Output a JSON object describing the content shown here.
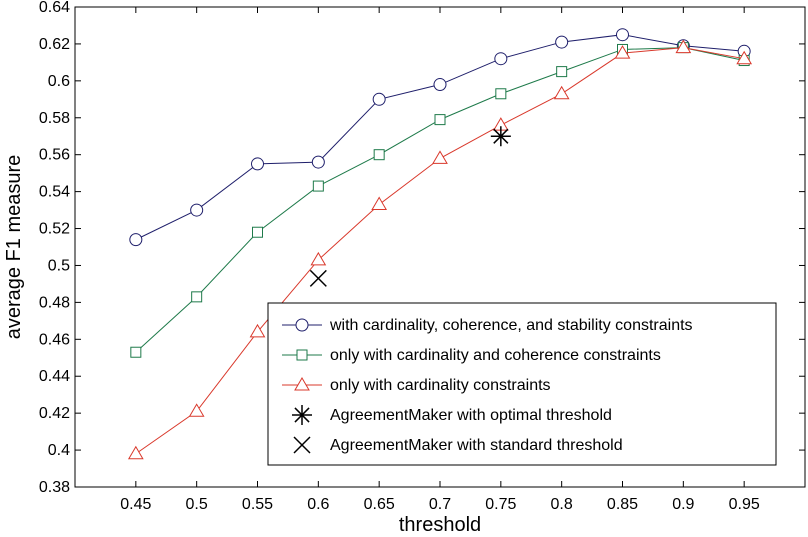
{
  "chart_data": {
    "type": "line",
    "title": "",
    "xlabel": "threshold",
    "ylabel": "average F1 measure",
    "xlim": [
      0.4,
      1.0
    ],
    "ylim": [
      0.38,
      0.64
    ],
    "xticks": [
      "0.45",
      "0.5",
      "0.55",
      "0.6",
      "0.65",
      "0.7",
      "0.75",
      "0.8",
      "0.85",
      "0.9",
      "0.95"
    ],
    "yticks": [
      "0.38",
      "0.4",
      "0.42",
      "0.44",
      "0.46",
      "0.48",
      "0.5",
      "0.52",
      "0.54",
      "0.56",
      "0.58",
      "0.6",
      "0.62",
      "0.64"
    ],
    "grid": false,
    "legend_position": "bottom-right",
    "x": [
      0.45,
      0.5,
      0.55,
      0.6,
      0.65,
      0.7,
      0.75,
      0.8,
      0.85,
      0.9,
      0.95
    ],
    "series": [
      {
        "name": "with cardinality, coherence, and stability constraints",
        "color": "#1f1f6b",
        "marker": "circle",
        "values": [
          0.514,
          0.53,
          0.555,
          0.556,
          0.59,
          0.598,
          0.612,
          0.621,
          0.625,
          0.619,
          0.616
        ]
      },
      {
        "name": "only with cardinality and coherence constraints",
        "color": "#1e7a4a",
        "marker": "square",
        "values": [
          0.453,
          0.483,
          0.518,
          0.543,
          0.56,
          0.579,
          0.593,
          0.605,
          0.617,
          0.618,
          0.611
        ]
      },
      {
        "name": "only with cardinality constraints",
        "color": "#d9382b",
        "marker": "triangle",
        "values": [
          0.398,
          0.421,
          0.464,
          0.503,
          0.533,
          0.558,
          0.576,
          0.593,
          0.615,
          0.618,
          0.612
        ]
      }
    ],
    "points": [
      {
        "name": "AgreementMaker with optimal threshold",
        "marker": "asterisk",
        "color": "#000000",
        "x": 0.75,
        "y": 0.57
      },
      {
        "name": "AgreementMaker with standard threshold",
        "marker": "x",
        "color": "#000000",
        "x": 0.6,
        "y": 0.493
      }
    ]
  }
}
